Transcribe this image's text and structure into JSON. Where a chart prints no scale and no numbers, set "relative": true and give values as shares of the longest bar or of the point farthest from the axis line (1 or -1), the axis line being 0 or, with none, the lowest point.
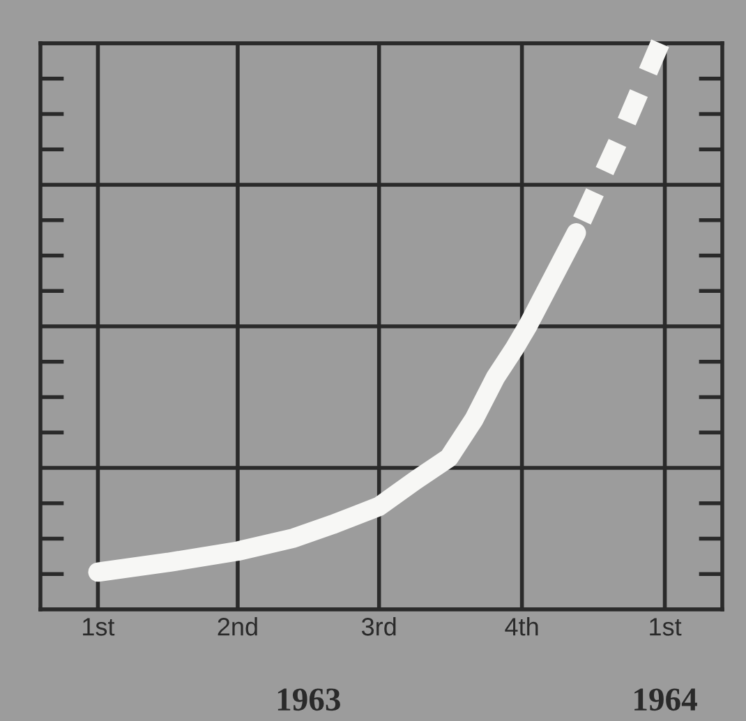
{
  "chart_data": {
    "type": "line",
    "relative": true,
    "x": [
      "1963-01-01",
      "1963-02-15",
      "1963-04-01",
      "1963-05-07",
      "1963-06-01",
      "1963-07-01",
      "1963-07-25",
      "1963-08-15",
      "1963-08-31",
      "1963-09-14",
      "1963-09-26",
      "1963-10-05",
      "1963-11-05"
    ],
    "series": [
      {
        "color": "#f7f7f5",
        "line_style": "solid",
        "values": [
          0.066,
          0.083,
          0.103,
          0.126,
          0.15,
          0.182,
          0.229,
          0.268,
          0.335,
          0.41,
          0.46,
          0.502,
          0.665
        ]
      },
      {
        "color": "#f7f7f5",
        "line_style": "dashed",
        "x": [
          "1963-11-05",
          "1963-12-03",
          "1963-12-29"
        ],
        "values": [
          0.665,
          0.833,
          1.0
        ]
      }
    ],
    "xlim": [
      "1962-11-25",
      "1964-02-07"
    ],
    "xticks": [
      {
        "value": "1963-01-01",
        "label": "1st"
      },
      {
        "value": "1963-04-01",
        "label": "2nd"
      },
      {
        "value": "1963-07-01",
        "label": "3rd"
      },
      {
        "value": "1963-10-01",
        "label": "4th"
      },
      {
        "value": "1964-01-01",
        "label": "1st"
      }
    ],
    "grid": true,
    "marker": "none",
    "annotations": [
      "1963",
      "1964"
    ]
  }
}
